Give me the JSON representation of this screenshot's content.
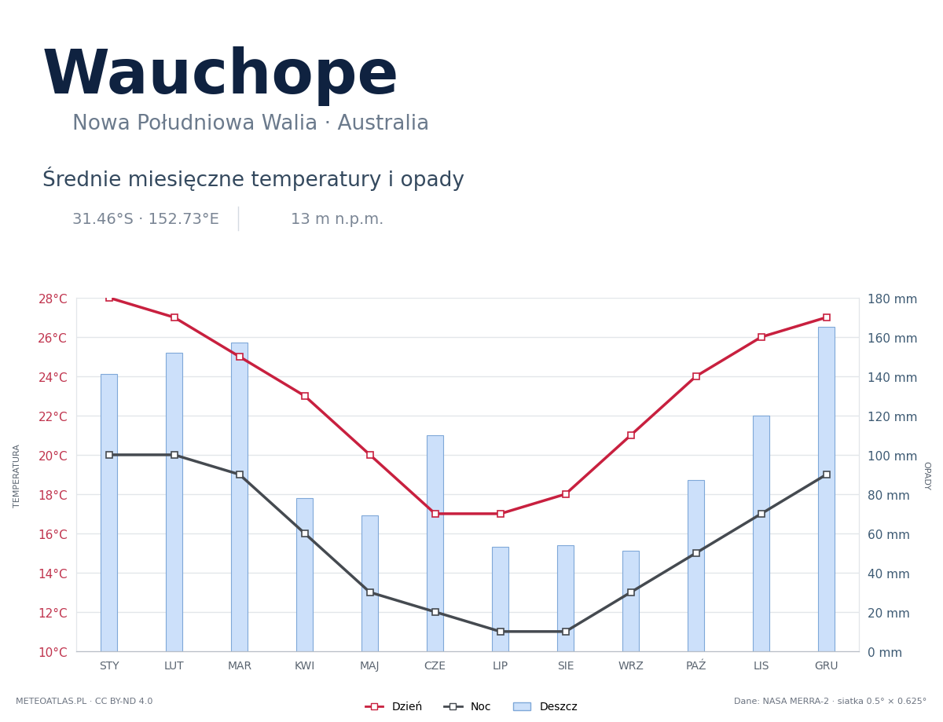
{
  "chart_data": {
    "type": "line",
    "title": "Wauchope",
    "subtitle": "Nowa Południowa Walia · Australia",
    "annotations": {
      "heading": "Średnie miesięczne temperatury i opady",
      "coordinates": "31.46°S · 152.73°E",
      "elevation": "13 m n.p.m.",
      "credit": "METEOATLAS.PL · CC BY-ND 4.0",
      "source": "Dane: NASA MERRA-2 · siatka 0.5° × 0.625°"
    },
    "ylabel": "TEMPERATURA",
    "y2label": "OPADY",
    "categories": [
      "STY",
      "LUT",
      "MAR",
      "KWI",
      "MAJ",
      "CZE",
      "LIP",
      "SIE",
      "WRZ",
      "PAŹ",
      "LIS",
      "GRU"
    ],
    "series": [
      {
        "name": "Dzień",
        "type": "line",
        "color": "#c8203f",
        "marker": "square",
        "values": [
          28,
          27,
          25,
          23,
          20,
          17,
          17,
          18,
          21,
          24,
          26,
          27
        ]
      },
      {
        "name": "Noc",
        "type": "line",
        "color": "#454a50",
        "marker": "square",
        "values": [
          20,
          20,
          19,
          16,
          13,
          12,
          11,
          11,
          13,
          15,
          17,
          19
        ]
      },
      {
        "name": "Deszcz",
        "type": "bar",
        "axis": "y2",
        "color": "#cce0fa",
        "values": [
          141,
          152,
          157,
          78,
          69,
          110,
          53,
          54,
          51,
          87,
          120,
          165
        ]
      }
    ],
    "ylim": [
      10,
      28
    ],
    "yticks": [
      {
        "value": 10,
        "label": "10°C"
      },
      {
        "value": 12,
        "label": "12°C"
      },
      {
        "value": 14,
        "label": "14°C"
      },
      {
        "value": 16,
        "label": "16°C"
      },
      {
        "value": 18,
        "label": "18°C"
      },
      {
        "value": 20,
        "label": "20°C"
      },
      {
        "value": 22,
        "label": "22°C"
      },
      {
        "value": 24,
        "label": "24°C"
      },
      {
        "value": 26,
        "label": "26°C"
      },
      {
        "value": 28,
        "label": "28°C"
      }
    ],
    "y2lim": [
      0,
      180
    ],
    "y2ticks": [
      {
        "value": 0,
        "label": "0 mm"
      },
      {
        "value": 20,
        "label": "20 mm"
      },
      {
        "value": 40,
        "label": "40 mm"
      },
      {
        "value": 60,
        "label": "60 mm"
      },
      {
        "value": 80,
        "label": "80 mm"
      },
      {
        "value": 100,
        "label": "100 mm"
      },
      {
        "value": 120,
        "label": "120 mm"
      },
      {
        "value": 140,
        "label": "140 mm"
      },
      {
        "value": 160,
        "label": "160 mm"
      },
      {
        "value": 180,
        "label": "180 mm"
      }
    ],
    "grid": true,
    "legend": "lower center"
  }
}
